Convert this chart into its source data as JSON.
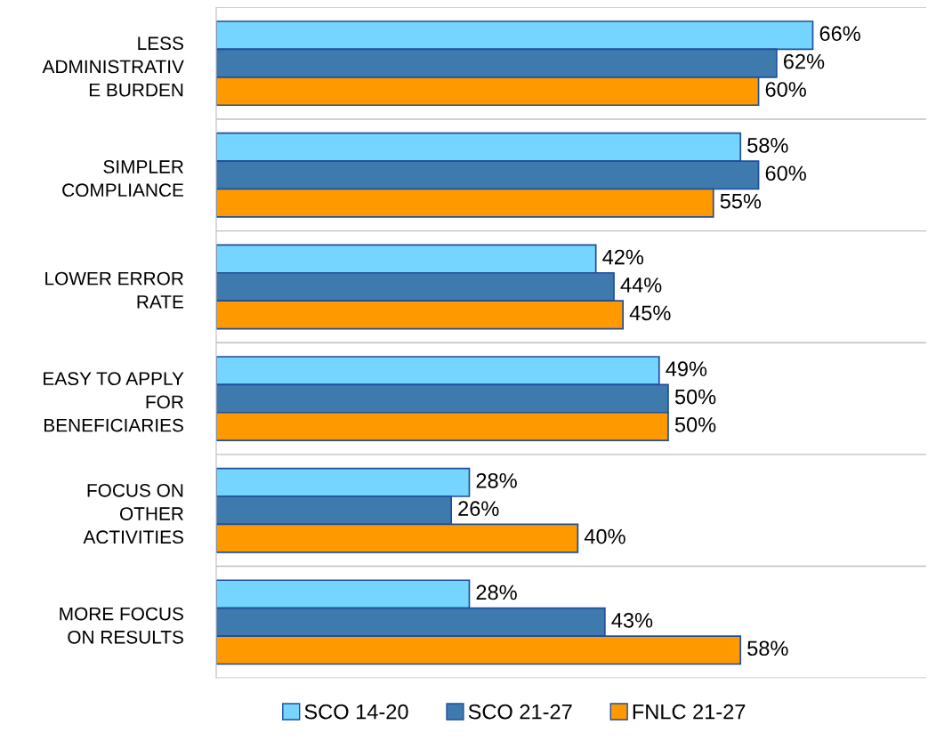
{
  "chart_data": {
    "type": "bar",
    "orientation": "horizontal",
    "categories": [
      "LESS\nADMINISTRATIV\nE BURDEN",
      "SIMPLER\nCOMPLIANCE",
      "LOWER ERROR\nRATE",
      "EASY TO APPLY\nFOR\nBENEFICIARIES",
      "FOCUS ON\nOTHER\nACTIVITIES",
      "MORE FOCUS\nON RESULTS"
    ],
    "series": [
      {
        "name": "SCO 14-20",
        "color": "#75d5ff",
        "values": [
          66,
          58,
          42,
          49,
          28,
          28
        ],
        "value_labels": [
          "66%",
          "58%",
          "42%",
          "49%",
          "28%",
          "28%"
        ]
      },
      {
        "name": "SCO 21-27",
        "color": "#3f7aae",
        "values": [
          62,
          60,
          44,
          50,
          26,
          43
        ],
        "value_labels": [
          "62%",
          "60%",
          "44%",
          "50%",
          "26%",
          "43%"
        ]
      },
      {
        "name": "FNLC 21-27",
        "color": "#ff9900",
        "values": [
          60,
          55,
          45,
          50,
          40,
          58
        ],
        "value_labels": [
          "60%",
          "55%",
          "45%",
          "50%",
          "40%",
          "58%"
        ]
      }
    ],
    "grid": "y",
    "legend": "bottom"
  }
}
